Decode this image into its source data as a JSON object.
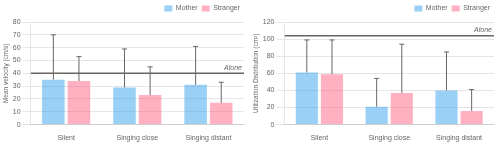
{
  "chart_data": [
    {
      "type": "bar",
      "ylabel": "Mean velocity (cm/s)",
      "categories": [
        "Silent",
        "Singing close",
        "Singing distant"
      ],
      "series": [
        {
          "name": "Mother",
          "values": [
            35,
            29,
            31
          ],
          "errors": [
            35,
            30,
            30
          ]
        },
        {
          "name": "Stranger",
          "values": [
            34,
            23,
            17
          ],
          "errors": [
            19,
            22,
            16
          ]
        }
      ],
      "annotations": [
        {
          "text": "Alone",
          "y": 40
        }
      ],
      "ylim": [
        0,
        80
      ],
      "yticks": [
        0,
        10,
        20,
        30,
        40,
        50,
        60,
        70,
        80
      ],
      "grid": true,
      "legend": "upper right"
    },
    {
      "type": "bar",
      "ylabel": "Utilization Distribution (cm²)",
      "categories": [
        "Silent",
        "Singing close",
        "Singing distant"
      ],
      "series": [
        {
          "name": "Mother",
          "values": [
            61,
            21,
            40
          ],
          "errors": [
            38,
            33,
            45
          ]
        },
        {
          "name": "Stranger",
          "values": [
            59,
            37,
            16
          ],
          "errors": [
            40,
            57,
            25
          ]
        }
      ],
      "annotations": [
        {
          "text": "Alone",
          "y": 104
        }
      ],
      "ylim": [
        0,
        120
      ],
      "yticks": [
        0,
        20,
        40,
        60,
        80,
        100,
        120
      ],
      "grid": true,
      "legend": "upper right"
    }
  ]
}
